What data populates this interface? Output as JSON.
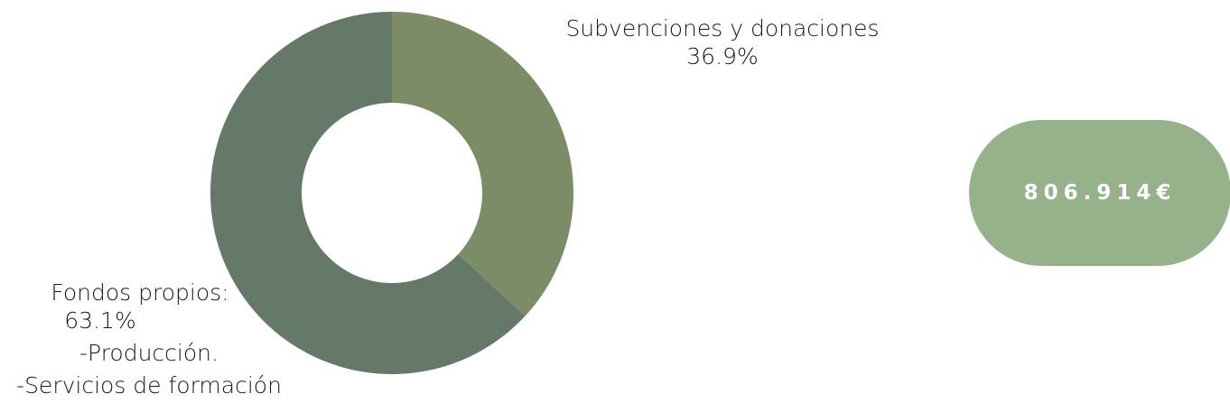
{
  "chart_data": {
    "type": "pie",
    "donut": true,
    "slices": [
      {
        "label": "Subvenciones y donaciones",
        "value_label": "36.9%",
        "value": 36.9,
        "color": "#7b8c67"
      },
      {
        "label": "Fondos propios:",
        "value_label": "63.1%",
        "value": 63.1,
        "color": "#657969"
      }
    ],
    "fondos_details": [
      "-Producción.",
      "-Servicios de formación"
    ]
  },
  "total": {
    "value": "806.914€",
    "color": "#95b28a"
  }
}
